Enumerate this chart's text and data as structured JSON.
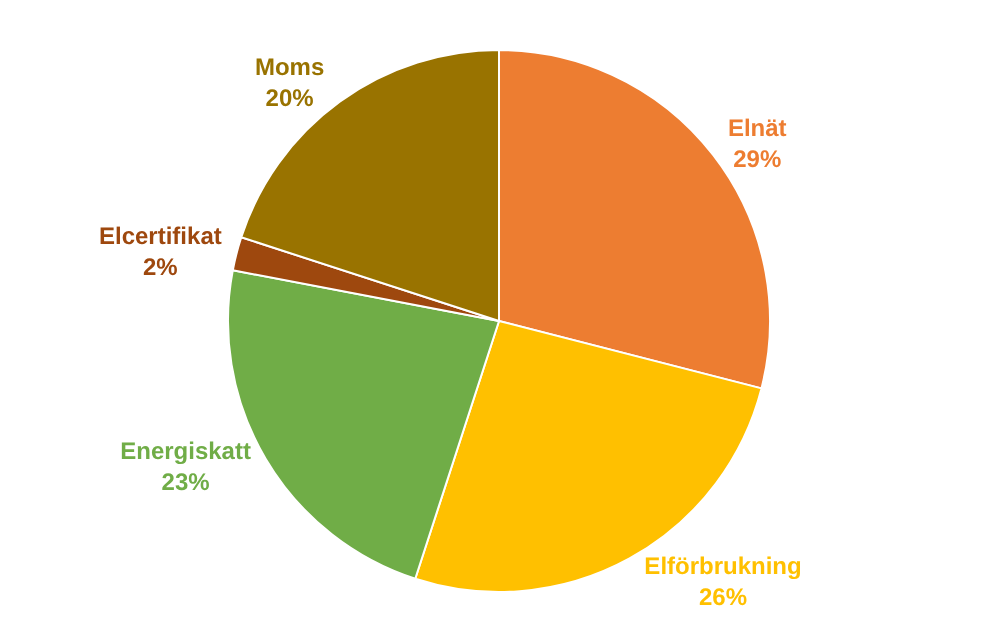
{
  "chart_data": {
    "type": "pie",
    "categories": [
      "Elnät",
      "Elförbrukning",
      "Energiskatt",
      "Elcertifikat",
      "Moms"
    ],
    "values": [
      29,
      26,
      23,
      2,
      20
    ],
    "colors": [
      "#ed7d31",
      "#ffc000",
      "#70ad47",
      "#9e480e",
      "#997300"
    ],
    "value_labels": [
      "29%",
      "26%",
      "23%",
      "2%",
      "20%"
    ],
    "legend": false
  }
}
